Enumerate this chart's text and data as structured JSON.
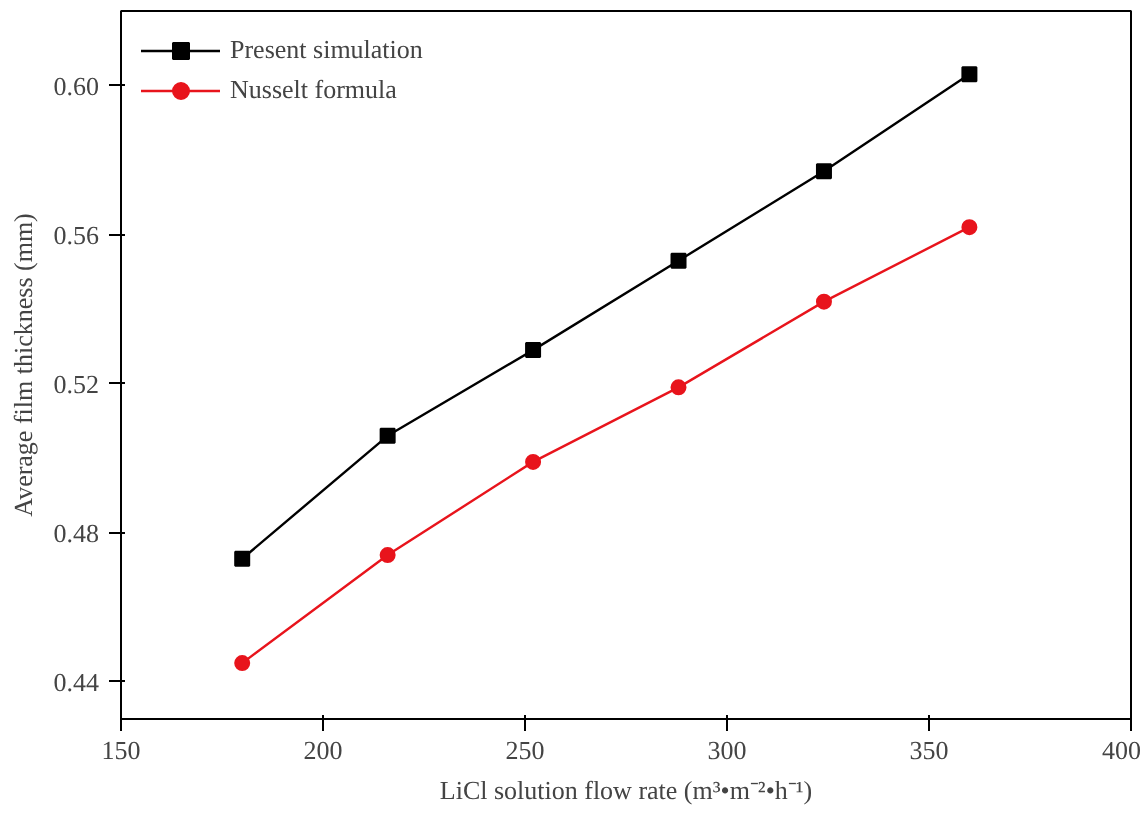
{
  "chart_data": {
    "type": "line",
    "xlabel": "LiCl solution flow rate (m³•m⁻²•h⁻¹)",
    "ylabel": "Average film thickness (mm)",
    "x": [
      180,
      216,
      252,
      288,
      324,
      360
    ],
    "xlim": [
      150,
      400
    ],
    "xticks": [
      150,
      200,
      250,
      300,
      350,
      400
    ],
    "ylim": [
      0.43,
      0.62
    ],
    "yticks": [
      0.44,
      0.48,
      0.52,
      0.56,
      {
        "value": 0.6,
        "label": "0.60"
      }
    ],
    "grid": false,
    "legend": "top left",
    "series": [
      {
        "name": "Present simulation",
        "color": "#000000",
        "marker": "square",
        "values": [
          0.473,
          0.506,
          0.529,
          0.553,
          0.577,
          0.603
        ]
      },
      {
        "name": "Nusselt formula",
        "color": "#e8141c",
        "marker": "circle",
        "values": [
          0.445,
          0.474,
          0.499,
          0.519,
          0.542,
          0.562
        ]
      }
    ]
  }
}
